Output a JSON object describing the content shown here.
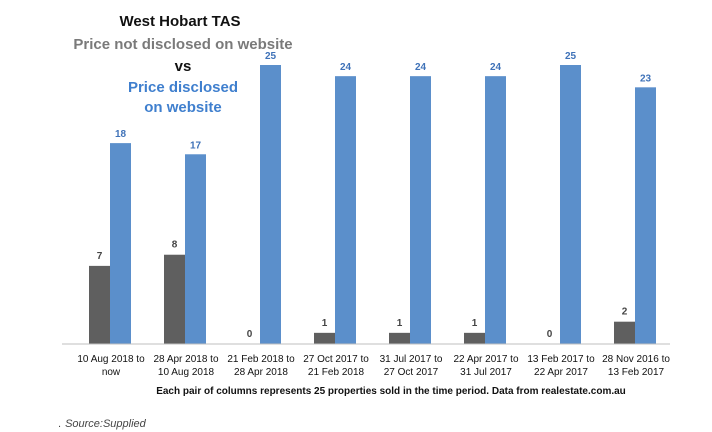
{
  "titles": {
    "location": "West Hobart TAS",
    "series_a": "Price not disclosed on website",
    "versus": "vs",
    "series_b_line1": "Price disclosed",
    "series_b_line2": "on website"
  },
  "footnote": "Each pair of columns represents 25 properties sold in the time period. Data from realestate.com.au",
  "source": {
    "dot": ".",
    "text": "Source:Supplied"
  },
  "colors": {
    "not_disclosed": "#5f5f5f",
    "disclosed": "#5b8fcb",
    "disclosed_label": "#3f72b8",
    "not_disclosed_label": "#444444",
    "axis": "#bfbfbf"
  },
  "chart_data": {
    "type": "bar",
    "categories": [
      [
        "10 Aug 2018 to",
        "now"
      ],
      [
        "28 Apr  2018 to",
        "10 Aug 2018"
      ],
      [
        "21 Feb 2018 to",
        "28 Apr 2018"
      ],
      [
        "27 Oct 2017 to",
        "21 Feb 2018"
      ],
      [
        "31 Jul 2017 to",
        "27 Oct 2017"
      ],
      [
        "22 Apr 2017 to",
        "31 Jul 2017"
      ],
      [
        "13 Feb 2017 to",
        "22 Apr 2017"
      ],
      [
        "28 Nov 2016 to",
        "13 Feb 2017"
      ]
    ],
    "series": [
      {
        "name": "Price not disclosed on website",
        "values": [
          7,
          8,
          0,
          1,
          1,
          1,
          0,
          2
        ]
      },
      {
        "name": "Price disclosed on website",
        "values": [
          18,
          17,
          25,
          24,
          24,
          24,
          25,
          23
        ]
      }
    ],
    "ylim": [
      0,
      25
    ],
    "grid": false,
    "legend": "top-left"
  }
}
